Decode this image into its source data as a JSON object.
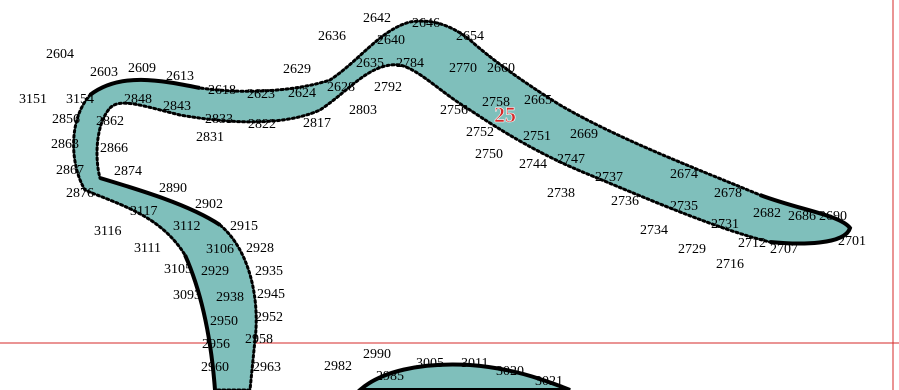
{
  "colors": {
    "fill": "#7fbfbb",
    "outline": "#000000",
    "guide": "#d42a2a",
    "region_label": "#d42a2a",
    "background": "#ffffff"
  },
  "region_label": "25",
  "point_labels": [
    "2604",
    "2603",
    "2609",
    "2613",
    "2618",
    "2623",
    "2624",
    "2628",
    "2629",
    "2635",
    "2636",
    "2640",
    "2642",
    "2646",
    "2654",
    "2660",
    "2665",
    "2669",
    "2674",
    "2678",
    "2682",
    "2686",
    "2690",
    "2701",
    "2707",
    "2712",
    "2716",
    "2729",
    "2731",
    "2734",
    "2735",
    "2736",
    "2737",
    "2738",
    "2744",
    "2747",
    "2750",
    "2751",
    "2752",
    "2756",
    "2758",
    "2770",
    "2784",
    "2792",
    "2803",
    "2817",
    "2822",
    "2831",
    "2833",
    "2843",
    "2848",
    "2856",
    "2862",
    "2863",
    "2866",
    "2867",
    "2874",
    "2876",
    "2890",
    "2902",
    "2915",
    "2928",
    "2929",
    "2935",
    "2938",
    "2945",
    "2950",
    "2952",
    "2956",
    "2958",
    "2960",
    "2963",
    "2982",
    "2985",
    "2990",
    "3005",
    "3011",
    "3020",
    "3021",
    "3093",
    "3105",
    "3106",
    "3111",
    "3112",
    "3116",
    "3117",
    "3151",
    "3154"
  ]
}
